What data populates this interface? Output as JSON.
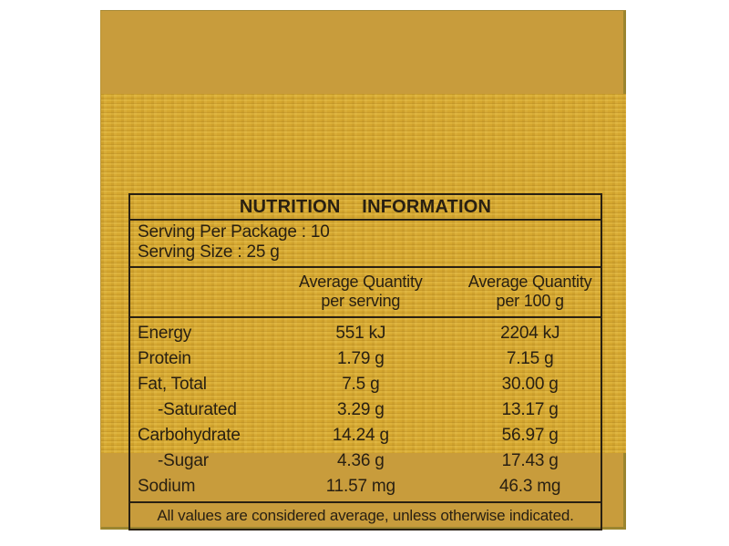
{
  "label_panel": {
    "title": "NUTRITION INFORMATION",
    "serving": {
      "per_package": "Serving Per Package : 10",
      "size": "Serving Size : 25 g"
    },
    "col_headers": {
      "per_serving": {
        "line1": "Average Quantity",
        "line2": "per serving"
      },
      "per_100g": {
        "line1": "Average Quantity",
        "line2": "per 100 g"
      }
    },
    "rows": [
      {
        "name": "Energy",
        "per_serving": "551 kJ",
        "per_100g": "2204 kJ"
      },
      {
        "name": "Protein",
        "per_serving": "1.79 g",
        "per_100g": "7.15 g"
      },
      {
        "name": "Fat, Total",
        "per_serving": "7.5 g",
        "per_100g": "30.00 g"
      },
      {
        "name": "-Saturated",
        "per_serving": "3.29 g",
        "per_100g": "13.17 g"
      },
      {
        "name": "Carbohydrate",
        "per_serving": "14.24 g",
        "per_100g": "56.97 g"
      },
      {
        "name": "-Sugar",
        "per_serving": "4.36 g",
        "per_100g": "17.43 g"
      },
      {
        "name": "Sodium",
        "per_serving": "11.57 mg",
        "per_100g": "46.3 mg"
      }
    ],
    "footnote": "All values are considered average, unless otherwise indicated.",
    "colors": {
      "page_background": "#ffffff",
      "gold_background": "#c89c3c",
      "gold_texture": "#d5a72f",
      "gold_edge_shadow": "#9b852f",
      "ink": "#292012"
    }
  }
}
